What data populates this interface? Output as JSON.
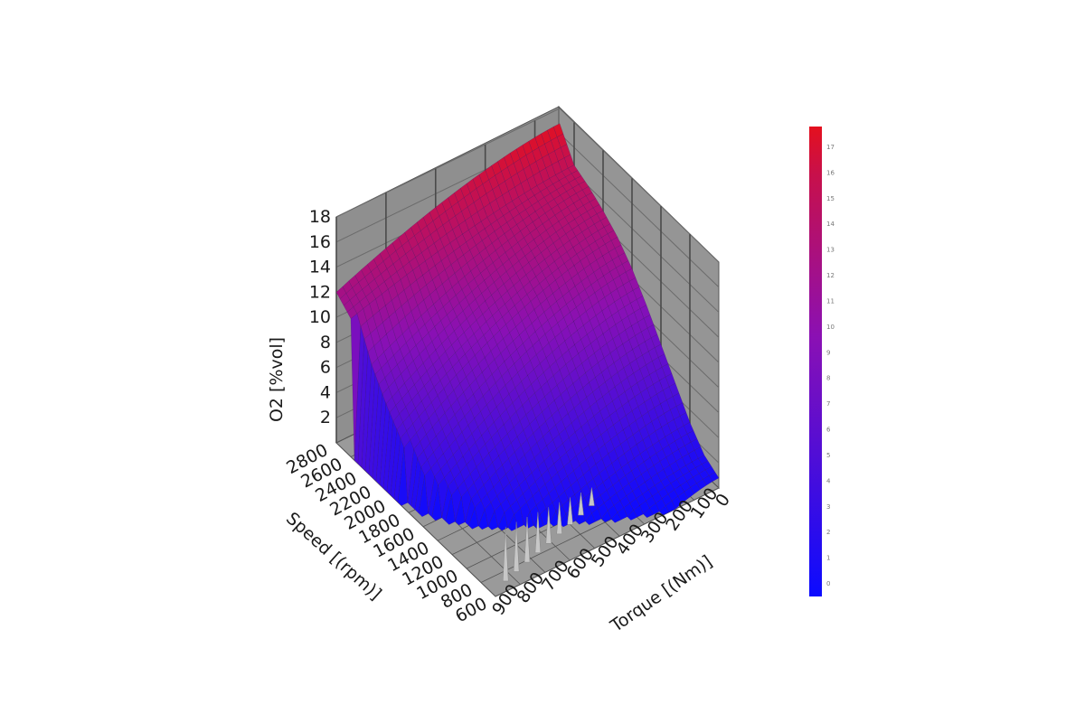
{
  "chart_data": {
    "type": "surface3d",
    "title": "",
    "zlabel": "O2 [%vol]",
    "ylabel": "Speed [(rpm)]",
    "xlabel": "Torque [(Nm)]",
    "z_ticks": [
      "2",
      "4",
      "6",
      "8",
      "10",
      "12",
      "14",
      "16",
      "18"
    ],
    "speed_ticks": [
      "2800",
      "2600",
      "2400",
      "2200",
      "2000",
      "1800",
      "1600",
      "1400",
      "1200",
      "1000",
      "800",
      "600"
    ],
    "torque_ticks": [
      "0",
      "100",
      "200",
      "300",
      "400",
      "500",
      "600",
      "700",
      "800",
      "900"
    ],
    "zlim": [
      0,
      18
    ],
    "speed_lim": [
      600,
      2800
    ],
    "torque_lim": [
      0,
      900
    ],
    "colorbar": {
      "ticks": [
        "17",
        "16",
        "15",
        "14",
        "13",
        "12",
        "11",
        "10",
        "9",
        "8",
        "7",
        "6",
        "5",
        "4",
        "3",
        "2",
        "1",
        "0"
      ],
      "colors": [
        "#0b0bff",
        "#8a10b4",
        "#e4101e"
      ]
    },
    "surface_profile": {
      "speed": [
        600,
        800,
        1000,
        1200,
        1400,
        1600,
        1800,
        2000,
        2200,
        2400,
        2600,
        2800
      ],
      "o2_at_zero_torque": [
        0.8,
        1.5,
        3.0,
        5.0,
        7.0,
        9.0,
        10.8,
        12.2,
        13.2,
        14.0,
        14.6,
        16.8
      ],
      "o2_at_max_torque": [
        0.2,
        0.3,
        0.5,
        0.8,
        1.2,
        2.0,
        3.0,
        4.5,
        6.0,
        8.0,
        11.0,
        12.0
      ],
      "max_torque": [
        150,
        350,
        500,
        650,
        750,
        820,
        860,
        880,
        890,
        895,
        900,
        900
      ]
    },
    "grid": true
  }
}
